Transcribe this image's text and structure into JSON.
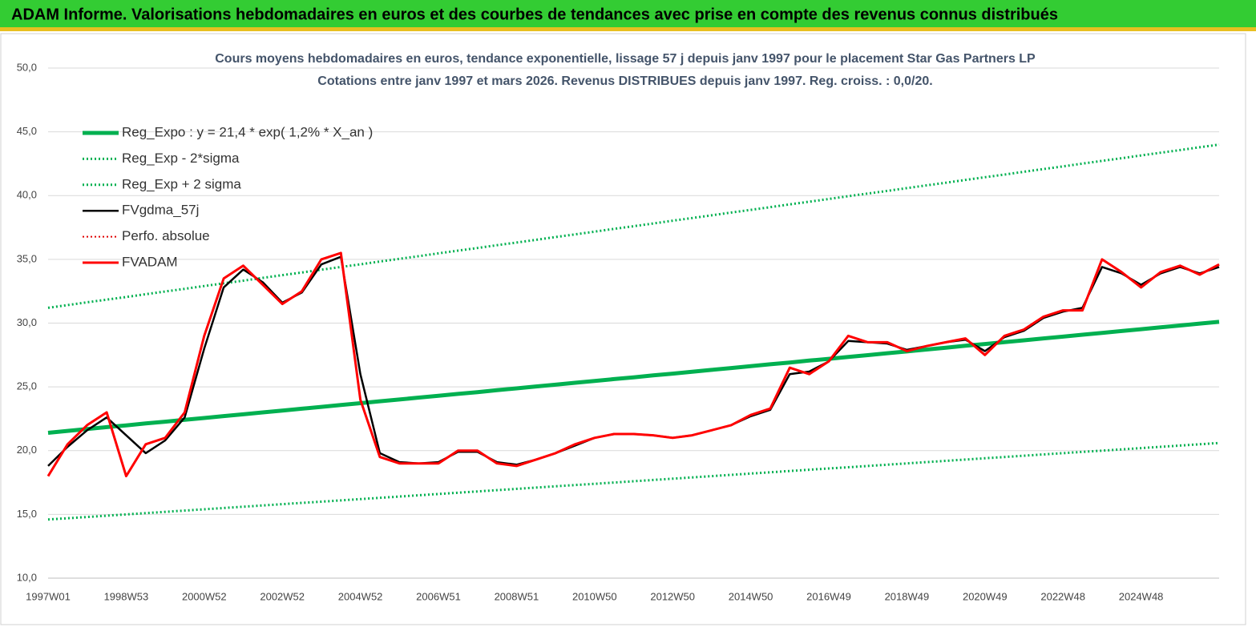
{
  "header": {
    "title": "ADAM Informe. Valorisations hebdomadaires en euros et des courbes de tendances avec prise en compte des revenus connus distribués"
  },
  "chart_data": {
    "type": "line",
    "title": "Cours moyens hebdomadaires en euros, tendance exponentielle, lissage 57 j depuis janv 1997 pour le  placement Star Gas Partners LP",
    "subtitle": "Cotations entre janv 1997 et mars 2026. Revenus DISTRIBUES depuis janv 1997. Reg. croiss. : 0,0/20.",
    "categories": [
      "1997W01",
      null,
      null,
      null,
      "1998W53",
      null,
      null,
      null,
      "2000W52",
      null,
      null,
      null,
      "2002W52",
      null,
      null,
      null,
      "2004W52",
      null,
      null,
      null,
      "2006W51",
      null,
      null,
      null,
      "2008W51",
      null,
      null,
      null,
      "2010W50",
      null,
      null,
      null,
      "2012W50",
      null,
      null,
      null,
      "2014W50",
      null,
      null,
      null,
      "2016W49",
      null,
      null,
      null,
      "2018W49",
      null,
      null,
      null,
      "2020W49",
      null,
      null,
      null,
      "2022W48",
      null,
      null,
      null,
      "2024W48",
      null,
      null,
      null,
      null
    ],
    "ylim": [
      10,
      50
    ],
    "yticks": [
      {
        "value": 10,
        "label": "10,0"
      },
      {
        "value": 15,
        "label": "15,0"
      },
      {
        "value": 20,
        "label": "20,0"
      },
      {
        "value": 25,
        "label": "25,0"
      },
      {
        "value": 30,
        "label": "30,0"
      },
      {
        "value": 35,
        "label": "35,0"
      },
      {
        "value": 40,
        "label": "40,0"
      },
      {
        "value": 45,
        "label": "45,0"
      },
      {
        "value": 50,
        "label": "50,0"
      }
    ],
    "grid": true,
    "series": [
      {
        "name": "Reg_Expo : y = 21,4 * exp( 1,2% *  X_an )",
        "color": "#00b050",
        "style": "solid",
        "width": 5,
        "values": [
          21.4,
          21.55,
          21.69,
          21.84,
          21.98,
          22.13,
          22.27,
          22.42,
          22.56,
          22.71,
          22.85,
          23.0,
          23.14,
          23.29,
          23.43,
          23.58,
          23.72,
          23.87,
          24.01,
          24.16,
          24.3,
          24.45,
          24.59,
          24.74,
          24.88,
          25.03,
          25.17,
          25.32,
          25.46,
          25.61,
          25.75,
          25.9,
          26.04,
          26.19,
          26.33,
          26.48,
          26.62,
          26.77,
          26.91,
          27.06,
          27.2,
          27.35,
          27.49,
          27.64,
          27.78,
          27.93,
          28.07,
          28.22,
          28.36,
          28.51,
          28.65,
          28.8,
          28.94,
          29.09,
          29.23,
          29.38,
          29.52,
          29.67,
          29.81,
          29.96,
          30.1
        ]
      },
      {
        "name": "Reg_Exp - 2*sigma",
        "color": "#00b050",
        "style": "dotted",
        "width": 3,
        "values": [
          14.6,
          14.7,
          14.8,
          14.9,
          15.0,
          15.1,
          15.2,
          15.3,
          15.4,
          15.5,
          15.6,
          15.7,
          15.8,
          15.9,
          16.0,
          16.1,
          16.2,
          16.3,
          16.4,
          16.5,
          16.6,
          16.7,
          16.8,
          16.9,
          17.0,
          17.1,
          17.2,
          17.3,
          17.4,
          17.5,
          17.6,
          17.7,
          17.8,
          17.9,
          18.0,
          18.1,
          18.2,
          18.3,
          18.4,
          18.5,
          18.6,
          18.7,
          18.8,
          18.9,
          19.0,
          19.1,
          19.2,
          19.3,
          19.4,
          19.5,
          19.6,
          19.7,
          19.8,
          19.9,
          20.0,
          20.1,
          20.2,
          20.3,
          20.4,
          20.5,
          20.6
        ]
      },
      {
        "name": "Reg_Exp + 2 sigma",
        "color": "#00b050",
        "style": "dotted",
        "width": 3,
        "values": [
          31.2,
          31.41,
          31.63,
          31.84,
          32.05,
          32.27,
          32.48,
          32.69,
          32.91,
          33.12,
          33.33,
          33.55,
          33.76,
          33.97,
          34.19,
          34.4,
          34.61,
          34.83,
          35.04,
          35.25,
          35.47,
          35.68,
          35.89,
          36.11,
          36.32,
          36.53,
          36.75,
          36.96,
          37.17,
          37.39,
          37.6,
          37.81,
          38.03,
          38.24,
          38.45,
          38.67,
          38.88,
          39.09,
          39.31,
          39.52,
          39.73,
          39.95,
          40.16,
          40.37,
          40.59,
          40.8,
          41.01,
          41.23,
          41.44,
          41.65,
          41.87,
          42.08,
          42.29,
          42.51,
          42.72,
          42.93,
          43.15,
          43.36,
          43.57,
          43.79,
          44.0
        ]
      },
      {
        "name": "FVgdma_57j",
        "color": "#000000",
        "style": "solid",
        "width": 2.5,
        "values": [
          18.8,
          20.3,
          21.6,
          22.6,
          21.2,
          19.8,
          20.8,
          22.6,
          28.0,
          32.8,
          34.2,
          33.2,
          31.6,
          32.4,
          34.6,
          35.2,
          26.0,
          19.8,
          19.1,
          19.0,
          19.1,
          19.9,
          19.9,
          19.1,
          18.9,
          19.3,
          19.8,
          20.4,
          21.0,
          21.3,
          21.3,
          21.2,
          21.0,
          21.2,
          21.6,
          22.0,
          22.7,
          23.2,
          26.0,
          26.2,
          27.0,
          28.6,
          28.5,
          28.4,
          27.9,
          28.2,
          28.5,
          28.7,
          27.8,
          28.9,
          29.4,
          30.4,
          30.9,
          31.2,
          34.4,
          33.9,
          33.0,
          33.9,
          34.4,
          33.9,
          34.4
        ]
      },
      {
        "name": "Perfo. absolue",
        "color": "#e00000",
        "style": "dotted",
        "width": 2,
        "values": [
          null,
          null,
          null,
          null,
          null,
          null,
          null,
          null,
          null,
          null,
          null,
          null,
          null,
          null,
          null,
          null,
          null,
          null,
          null,
          null,
          null,
          null,
          null,
          null,
          null,
          null,
          null,
          null,
          null,
          null,
          null,
          null,
          null,
          null,
          null,
          null,
          null,
          null,
          null,
          null,
          null,
          null,
          null,
          null,
          null,
          null,
          null,
          null,
          null,
          null,
          null,
          null,
          null,
          null,
          null,
          null,
          null,
          null,
          null,
          null,
          null
        ]
      },
      {
        "name": "FVADAM",
        "color": "#ff0000",
        "style": "solid",
        "width": 3,
        "values": [
          18.0,
          20.5,
          22.0,
          23.0,
          18.0,
          20.5,
          21.0,
          23.0,
          29.0,
          33.5,
          34.5,
          33.0,
          31.5,
          32.5,
          35.0,
          35.5,
          24.0,
          19.5,
          19.0,
          19.0,
          19.0,
          20.0,
          20.0,
          19.0,
          18.8,
          19.3,
          19.8,
          20.5,
          21.0,
          21.3,
          21.3,
          21.2,
          21.0,
          21.2,
          21.6,
          22.0,
          22.8,
          23.3,
          26.5,
          26.0,
          27.0,
          29.0,
          28.5,
          28.5,
          27.8,
          28.2,
          28.5,
          28.8,
          27.5,
          29.0,
          29.5,
          30.5,
          31.0,
          31.0,
          35.0,
          34.0,
          32.8,
          34.0,
          34.5,
          33.8,
          34.6
        ]
      }
    ]
  }
}
